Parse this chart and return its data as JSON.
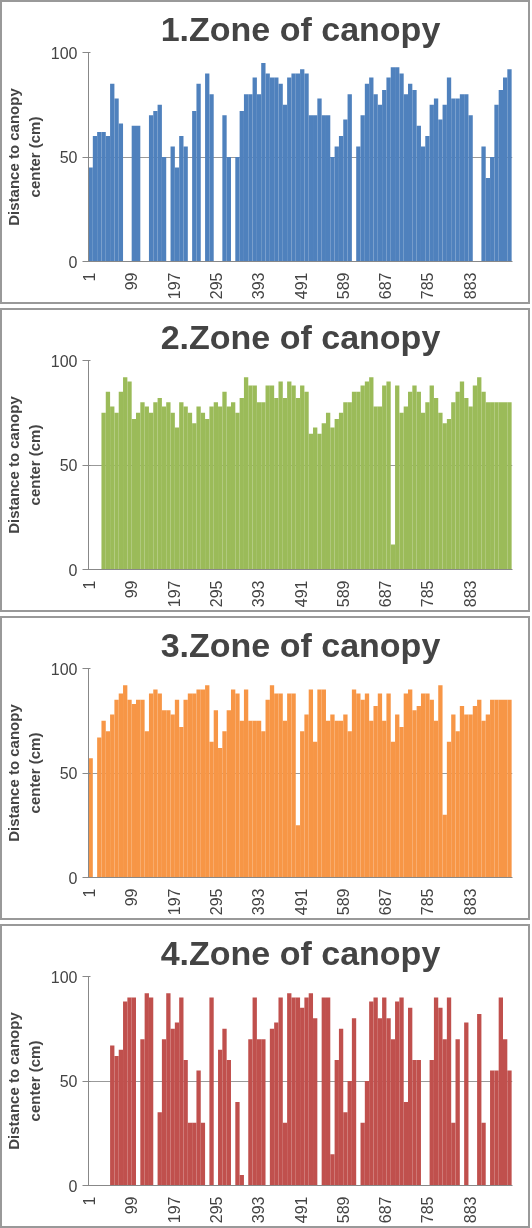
{
  "chart_data": [
    {
      "type": "bar",
      "title": "1.Zone of canopy",
      "ylabel": "Distance to canopy center (cm)",
      "xlim": [
        0,
        982
      ],
      "xticks": [
        1,
        99,
        197,
        295,
        393,
        491,
        589,
        687,
        785,
        883
      ],
      "ylim": [
        0,
        100
      ],
      "yticks": [
        0,
        50,
        100
      ],
      "grid": "y",
      "x": [
        5,
        15,
        25,
        35,
        45,
        55,
        65,
        75,
        85,
        95,
        105,
        115,
        125,
        135,
        145,
        155,
        165,
        175,
        185,
        195,
        205,
        215,
        225,
        235,
        245,
        255,
        265,
        275,
        285,
        295,
        305,
        315,
        325,
        335,
        345,
        355,
        365,
        375,
        385,
        395,
        405,
        415,
        425,
        435,
        445,
        455,
        465,
        475,
        485,
        495,
        505,
        515,
        525,
        535,
        545,
        555,
        565,
        575,
        585,
        595,
        605,
        615,
        625,
        635,
        645,
        655,
        665,
        675,
        685,
        695,
        705,
        715,
        725,
        735,
        745,
        755,
        765,
        775,
        785,
        795,
        805,
        815,
        825,
        835,
        845,
        855,
        865,
        875,
        885,
        895,
        905,
        915,
        925,
        935,
        945,
        955,
        965,
        975
      ],
      "series": [
        {
          "color": "#4f81bd",
          "values": [
            45,
            60,
            62,
            62,
            60,
            85,
            78,
            66,
            0,
            0,
            65,
            65,
            0,
            0,
            70,
            72,
            75,
            50,
            0,
            55,
            45,
            60,
            55,
            0,
            72,
            85,
            0,
            90,
            80,
            0,
            0,
            70,
            50,
            0,
            50,
            72,
            80,
            80,
            88,
            80,
            95,
            90,
            88,
            88,
            85,
            75,
            88,
            90,
            90,
            92,
            90,
            70,
            70,
            78,
            70,
            70,
            50,
            55,
            60,
            68,
            80,
            0,
            55,
            70,
            85,
            88,
            80,
            75,
            82,
            88,
            93,
            93,
            90,
            80,
            85,
            82,
            65,
            55,
            60,
            75,
            78,
            68,
            75,
            88,
            78,
            78,
            80,
            80,
            70,
            0,
            0,
            55,
            40,
            50,
            75,
            82,
            88,
            92
          ]
        }
      ]
    },
    {
      "type": "bar",
      "title": "2.Zone of canopy",
      "ylabel": "Distance to canopy center (cm)",
      "xlim": [
        0,
        982
      ],
      "xticks": [
        1,
        99,
        197,
        295,
        393,
        491,
        589,
        687,
        785,
        883
      ],
      "ylim": [
        0,
        100
      ],
      "yticks": [
        0,
        50,
        100
      ],
      "grid": "y",
      "x": [
        5,
        15,
        25,
        35,
        45,
        55,
        65,
        75,
        85,
        95,
        105,
        115,
        125,
        135,
        145,
        155,
        165,
        175,
        185,
        195,
        205,
        215,
        225,
        235,
        245,
        255,
        265,
        275,
        285,
        295,
        305,
        315,
        325,
        335,
        345,
        355,
        365,
        375,
        385,
        395,
        405,
        415,
        425,
        435,
        445,
        455,
        465,
        475,
        485,
        495,
        505,
        515,
        525,
        535,
        545,
        555,
        565,
        575,
        585,
        595,
        605,
        615,
        625,
        635,
        645,
        655,
        665,
        675,
        685,
        695,
        705,
        715,
        725,
        735,
        745,
        755,
        765,
        775,
        785,
        795,
        805,
        815,
        825,
        835,
        845,
        855,
        865,
        875,
        885,
        895,
        905,
        915,
        925,
        935,
        945,
        955,
        965,
        975
      ],
      "series": [
        {
          "color": "#9bbb59",
          "values": [
            0,
            0,
            0,
            75,
            85,
            78,
            75,
            85,
            92,
            90,
            72,
            75,
            80,
            78,
            75,
            80,
            82,
            78,
            80,
            75,
            68,
            80,
            78,
            75,
            70,
            78,
            75,
            72,
            78,
            80,
            78,
            85,
            78,
            80,
            75,
            82,
            92,
            88,
            88,
            80,
            80,
            88,
            88,
            82,
            90,
            82,
            90,
            88,
            82,
            88,
            85,
            65,
            68,
            65,
            70,
            75,
            68,
            72,
            75,
            80,
            80,
            85,
            85,
            88,
            90,
            92,
            78,
            78,
            88,
            90,
            12,
            88,
            75,
            78,
            85,
            88,
            85,
            75,
            80,
            88,
            82,
            75,
            70,
            72,
            80,
            85,
            90,
            82,
            78,
            88,
            92,
            85,
            80,
            80,
            80,
            80,
            80,
            80
          ]
        }
      ]
    },
    {
      "type": "bar",
      "title": "3.Zone of canopy",
      "ylabel": "Distance to canopy center (cm)",
      "xlim": [
        0,
        982
      ],
      "xticks": [
        1,
        99,
        197,
        295,
        393,
        491,
        589,
        687,
        785,
        883
      ],
      "ylim": [
        0,
        100
      ],
      "yticks": [
        0,
        50,
        100
      ],
      "grid": "y",
      "x": [
        5,
        15,
        25,
        35,
        45,
        55,
        65,
        75,
        85,
        95,
        105,
        115,
        125,
        135,
        145,
        155,
        165,
        175,
        185,
        195,
        205,
        215,
        225,
        235,
        245,
        255,
        265,
        275,
        285,
        295,
        305,
        315,
        325,
        335,
        345,
        355,
        365,
        375,
        385,
        395,
        405,
        415,
        425,
        435,
        445,
        455,
        465,
        475,
        485,
        495,
        505,
        515,
        525,
        535,
        545,
        555,
        565,
        575,
        585,
        595,
        605,
        615,
        625,
        635,
        645,
        655,
        665,
        675,
        685,
        695,
        705,
        715,
        725,
        735,
        745,
        755,
        765,
        775,
        785,
        795,
        805,
        815,
        825,
        835,
        845,
        855,
        865,
        875,
        885,
        895,
        905,
        915,
        925,
        935,
        945,
        955,
        965,
        975
      ],
      "series": [
        {
          "color": "#f79646",
          "values": [
            57,
            0,
            67,
            75,
            70,
            78,
            85,
            88,
            92,
            85,
            83,
            85,
            85,
            70,
            88,
            90,
            88,
            80,
            80,
            78,
            85,
            72,
            85,
            88,
            88,
            90,
            90,
            92,
            65,
            80,
            62,
            70,
            80,
            90,
            88,
            75,
            90,
            75,
            75,
            75,
            70,
            85,
            92,
            88,
            88,
            75,
            88,
            88,
            25,
            70,
            78,
            90,
            65,
            90,
            90,
            75,
            78,
            75,
            75,
            78,
            70,
            90,
            88,
            85,
            88,
            75,
            82,
            88,
            75,
            88,
            65,
            78,
            72,
            88,
            90,
            80,
            82,
            88,
            88,
            85,
            75,
            92,
            30,
            65,
            78,
            70,
            82,
            78,
            78,
            82,
            85,
            75,
            78,
            85,
            85,
            85,
            85,
            85
          ]
        }
      ]
    },
    {
      "type": "bar",
      "title": "4.Zone of canopy",
      "ylabel": "Distance to canopy center (cm)",
      "xlim": [
        0,
        982
      ],
      "xticks": [
        1,
        99,
        197,
        295,
        393,
        491,
        589,
        687,
        785,
        883
      ],
      "ylim": [
        0,
        100
      ],
      "yticks": [
        0,
        50,
        100
      ],
      "grid": "y",
      "x": [
        5,
        15,
        25,
        35,
        45,
        55,
        65,
        75,
        85,
        95,
        105,
        115,
        125,
        135,
        145,
        155,
        165,
        175,
        185,
        195,
        205,
        215,
        225,
        235,
        245,
        255,
        265,
        275,
        285,
        295,
        305,
        315,
        325,
        335,
        345,
        355,
        365,
        375,
        385,
        395,
        405,
        415,
        425,
        435,
        445,
        455,
        465,
        475,
        485,
        495,
        505,
        515,
        525,
        535,
        545,
        555,
        565,
        575,
        585,
        595,
        605,
        615,
        625,
        635,
        645,
        655,
        665,
        675,
        685,
        695,
        705,
        715,
        725,
        735,
        745,
        755,
        765,
        775,
        785,
        795,
        805,
        815,
        825,
        835,
        845,
        855,
        865,
        875,
        885,
        895,
        905,
        915,
        925,
        935,
        945,
        955,
        965,
        975
      ],
      "series": [
        {
          "color": "#c0504d",
          "values": [
            0,
            0,
            0,
            0,
            0,
            67,
            62,
            65,
            88,
            90,
            90,
            0,
            70,
            92,
            90,
            0,
            35,
            70,
            92,
            75,
            78,
            90,
            60,
            30,
            30,
            55,
            30,
            0,
            90,
            0,
            65,
            75,
            60,
            0,
            40,
            5,
            0,
            70,
            90,
            70,
            70,
            0,
            75,
            78,
            90,
            30,
            92,
            90,
            90,
            85,
            90,
            92,
            80,
            0,
            90,
            90,
            15,
            60,
            75,
            35,
            50,
            80,
            0,
            30,
            50,
            88,
            90,
            80,
            90,
            80,
            70,
            88,
            90,
            40,
            85,
            60,
            60,
            0,
            0,
            60,
            90,
            85,
            70,
            90,
            30,
            70,
            0,
            78,
            0,
            0,
            82,
            30,
            0,
            55,
            55,
            90,
            70,
            55
          ]
        }
      ]
    }
  ]
}
